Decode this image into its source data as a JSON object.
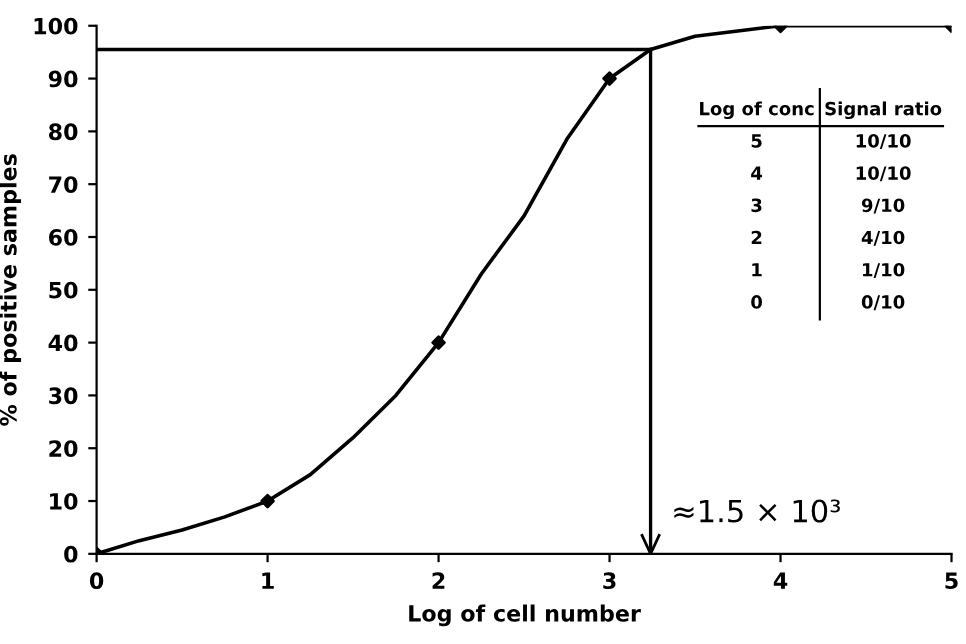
{
  "chart_data": {
    "type": "line",
    "xlabel": "Log of cell number",
    "ylabel": "% of positive samples",
    "series": [
      {
        "color": "#000000",
        "marker": "none",
        "x": [
          0,
          0.25,
          0.5,
          0.75,
          1,
          1.25,
          1.5,
          1.75,
          2,
          2.25,
          2.5,
          2.75,
          3,
          3.24,
          3.5,
          3.75,
          4,
          4.5,
          5
        ],
        "values": [
          0,
          2.5,
          4.5,
          7,
          10,
          15,
          22,
          30,
          40,
          53,
          64,
          78.5,
          90,
          95.5,
          98,
          99,
          100,
          100,
          100
        ]
      },
      {
        "type": "scatter",
        "color": "#000000",
        "marker": "diamond",
        "x": [
          0,
          1,
          2,
          3,
          4,
          5
        ],
        "values": [
          0,
          10,
          40,
          90,
          100,
          100
        ]
      }
    ],
    "line_style": "solid",
    "grid": false,
    "legend": false,
    "xlim": [
      0,
      5
    ],
    "xticks": [
      0,
      1,
      2,
      3,
      4,
      5
    ],
    "ylim": [
      0,
      100
    ],
    "yticks": [
      0,
      10,
      20,
      30,
      40,
      50,
      60,
      70,
      80,
      90,
      100
    ],
    "ref_lines": [
      {
        "axis": "y",
        "value": 95.5,
        "label": null,
        "color": "#000000"
      },
      {
        "axis": "x",
        "value": 3.24,
        "label": "≈1.5 × 10³",
        "color": "#000000"
      }
    ],
    "annotations": [
      "Log of conc",
      "Signal ratio",
      "5",
      "10/10",
      "4",
      "10/10",
      "3",
      "9/10",
      "2",
      "4/10",
      "1",
      "1/10",
      "0",
      "0/10"
    ]
  }
}
